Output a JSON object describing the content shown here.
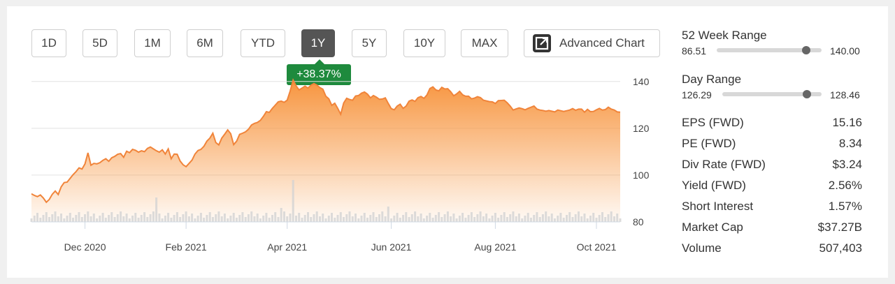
{
  "range_buttons": [
    {
      "label": "1D",
      "active": false
    },
    {
      "label": "5D",
      "active": false
    },
    {
      "label": "1M",
      "active": false
    },
    {
      "label": "6M",
      "active": false
    },
    {
      "label": "YTD",
      "active": false
    },
    {
      "label": "1Y",
      "active": true
    },
    {
      "label": "5Y",
      "active": false
    },
    {
      "label": "10Y",
      "active": false
    },
    {
      "label": "MAX",
      "active": false
    }
  ],
  "advanced_chart_label": "Advanced Chart",
  "change_badge": "+38.37%",
  "colors": {
    "accent_area": "#f7953f",
    "line": "#f0843a",
    "badge_green": "#1e8a3d",
    "active_button": "#555555",
    "volume_bar": "#d3d3d3"
  },
  "stats": {
    "week52": {
      "title": "52 Week Range",
      "low": "86.51",
      "high": "140.00",
      "position": 0.85
    },
    "day": {
      "title": "Day Range",
      "low": "126.29",
      "high": "128.46",
      "position": 0.85
    },
    "rows": [
      {
        "label": "EPS (FWD)",
        "value": "15.16"
      },
      {
        "label": "PE (FWD)",
        "value": "8.34"
      },
      {
        "label": "Div Rate (FWD)",
        "value": "$3.24"
      },
      {
        "label": "Yield (FWD)",
        "value": "2.56%"
      },
      {
        "label": "Short Interest",
        "value": "1.57%"
      },
      {
        "label": "Market Cap",
        "value": "$37.27B"
      },
      {
        "label": "Volume",
        "value": "507,403"
      }
    ]
  },
  "chart_data": {
    "type": "area",
    "title": "",
    "xlabel": "",
    "ylabel": "",
    "ylim": [
      80,
      145
    ],
    "yticks": [
      80,
      100,
      120,
      140
    ],
    "xtick_labels": [
      "Dec 2020",
      "Feb 2021",
      "Apr 2021",
      "Jun 2021",
      "Aug 2021",
      "Oct 2021"
    ],
    "xtick_index": [
      18,
      52,
      86,
      121,
      156,
      190
    ],
    "grid": true,
    "series": [
      {
        "values": [
          92.0,
          91.3,
          90.8,
          91.5,
          90.2,
          88.4,
          89.6,
          91.8,
          93.2,
          91.7,
          95.0,
          96.8,
          97.0,
          98.6,
          100.2,
          101.5,
          103.1,
          102.6,
          104.8,
          109.5,
          104.2,
          105.0,
          104.8,
          105.3,
          106.3,
          107.0,
          105.9,
          107.4,
          108.0,
          108.9,
          109.2,
          107.6,
          110.2,
          109.6,
          111.0,
          110.6,
          109.8,
          110.4,
          110.0,
          111.4,
          112.0,
          111.2,
          110.4,
          109.8,
          110.8,
          109.0,
          111.2,
          107.0,
          109.0,
          108.9,
          106.0,
          104.4,
          103.6,
          105.0,
          106.4,
          109.0,
          110.5,
          111.0,
          112.3,
          114.5,
          115.8,
          117.9,
          113.9,
          112.9,
          115.8,
          117.5,
          119.3,
          117.7,
          113.0,
          114.5,
          117.4,
          117.9,
          118.5,
          119.6,
          121.4,
          122.1,
          122.5,
          123.4,
          125.1,
          127.1,
          126.8,
          128.5,
          129.9,
          131.3,
          131.6,
          131.1,
          132.0,
          135.9,
          140.6,
          138.1,
          136.4,
          137.2,
          138.0,
          137.2,
          138.4,
          139.1,
          138.4,
          137.4,
          136.7,
          133.7,
          132.6,
          129.8,
          130.7,
          128.5,
          126.0,
          130.8,
          132.8,
          132.3,
          132.0,
          133.8,
          134.0,
          135.0,
          135.5,
          134.6,
          133.0,
          134.0,
          133.3,
          132.4,
          132.5,
          133.0,
          130.6,
          128.4,
          127.9,
          129.5,
          130.3,
          128.5,
          129.5,
          131.6,
          132.1,
          131.5,
          133.1,
          133.6,
          132.8,
          134.2,
          137.0,
          137.7,
          136.4,
          136.0,
          137.5,
          136.8,
          136.9,
          135.6,
          133.9,
          134.7,
          135.8,
          134.3,
          133.7,
          133.7,
          132.6,
          132.9,
          133.5,
          133.1,
          132.0,
          131.7,
          131.4,
          131.3,
          130.6,
          131.8,
          131.9,
          132.0,
          130.9,
          129.5,
          127.8,
          128.3,
          128.7,
          128.4,
          127.9,
          128.5,
          129.0,
          129.5,
          128.2,
          127.8,
          127.6,
          127.3,
          127.6,
          127.3,
          127.0,
          127.8,
          127.5,
          127.2,
          127.5,
          127.8,
          128.4,
          127.7,
          128.2,
          128.2,
          126.9,
          128.1,
          127.1,
          127.2,
          127.9,
          128.5,
          127.8,
          128.0,
          129.0,
          128.2,
          127.8,
          127.0,
          126.9
        ]
      }
    ],
    "volume_note": "relative volume bars along bottom of chart"
  }
}
